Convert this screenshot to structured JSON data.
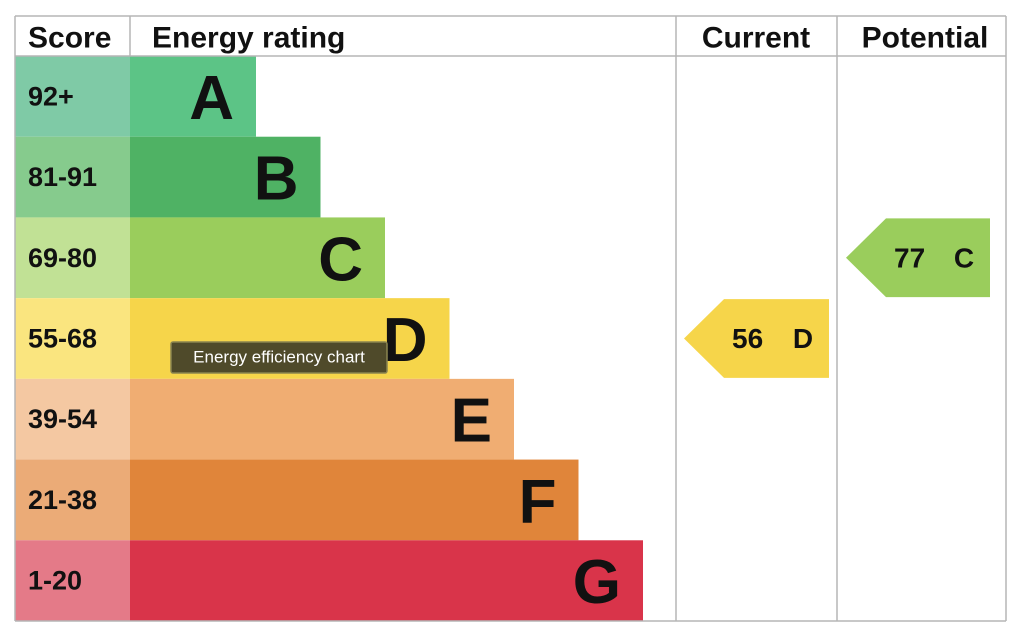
{
  "header": {
    "score": "Score",
    "rating": "Energy rating",
    "current": "Current",
    "potential": "Potential"
  },
  "bands": [
    {
      "score": "92+",
      "letter": "A"
    },
    {
      "score": "81-91",
      "letter": "B"
    },
    {
      "score": "69-80",
      "letter": "C"
    },
    {
      "score": "55-68",
      "letter": "D"
    },
    {
      "score": "39-54",
      "letter": "E"
    },
    {
      "score": "21-38",
      "letter": "F"
    },
    {
      "score": "1-20",
      "letter": "G"
    }
  ],
  "current": {
    "value": 56,
    "letter": "D"
  },
  "potential": {
    "value": 77,
    "letter": "C"
  },
  "tooltip": "Energy efficiency chart"
}
